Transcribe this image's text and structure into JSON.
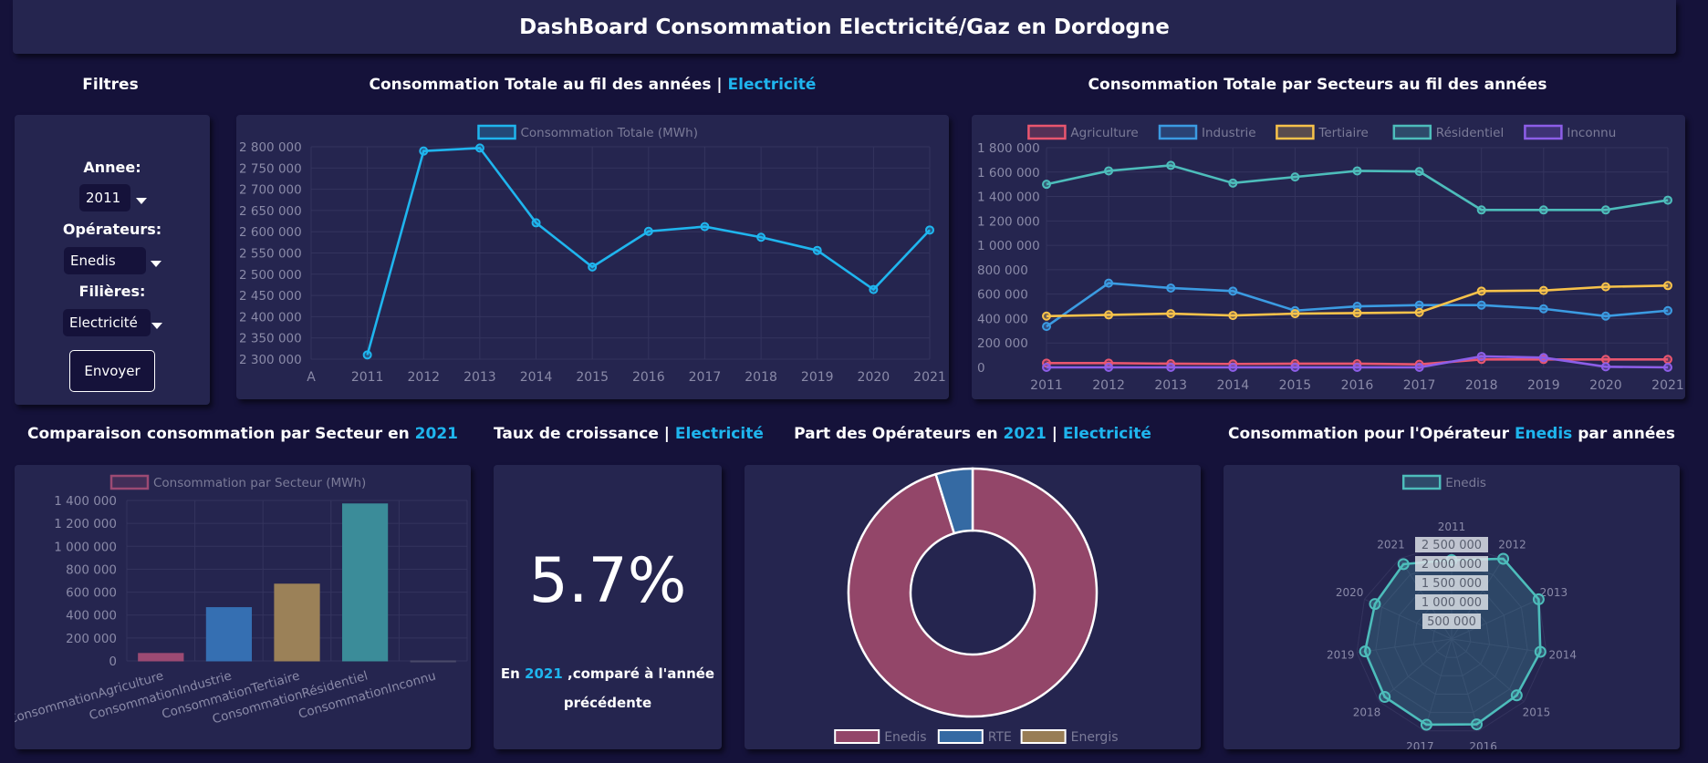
{
  "header": {
    "title": "DashBoard Consommation Electricité/Gaz en Dordogne"
  },
  "filters": {
    "title": "Filtres",
    "year_label": "Annee:",
    "year_value": "2011",
    "operator_label": "Opérateurs:",
    "operator_value": "Enedis",
    "filiere_label": "Filières:",
    "filiere_value": "Electricité",
    "submit_label": "Envoyer"
  },
  "total_chart": {
    "title_prefix": "Consommation Totale au fil des années | ",
    "title_highlight": "Electricité"
  },
  "sector_chart": {
    "title": "Consommation Totale par Secteurs au fil des années"
  },
  "bar_section": {
    "title_prefix": "Comparaison consommation par Secteur en ",
    "title_highlight": "2021"
  },
  "growth": {
    "title_prefix": "Taux de croissance | ",
    "title_highlight": "Electricité",
    "value": "5.7%",
    "caption_prefix": "En ",
    "caption_year": "2021",
    "caption_suffix": " ,comparé à l'année",
    "caption_line2": "précédente"
  },
  "share_section": {
    "title_prefix": "Part des Opérateurs en ",
    "title_year": "2021",
    "title_sep": " | ",
    "title_highlight": "Electricité"
  },
  "radar_section": {
    "title_prefix": "Consommation pour l'Opérateur ",
    "title_highlight": "Enedis",
    "title_suffix": " par années"
  },
  "chart_data": [
    {
      "type": "line",
      "legend": [
        "Consommation Totale (MWh)"
      ],
      "x": [
        "A",
        "2011",
        "2012",
        "2013",
        "2014",
        "2015",
        "2016",
        "2017",
        "2018",
        "2019",
        "2020",
        "2021"
      ],
      "series": [
        {
          "name": "Consommation Totale (MWh)",
          "color": "#1fb5ee",
          "values": [
            null,
            2310000,
            2790000,
            2797000,
            2621000,
            2517000,
            2601000,
            2612000,
            2587000,
            2556000,
            2464000,
            2604000
          ]
        }
      ],
      "yticks": [
        "2 800 000",
        "2 750 000",
        "2 700 000",
        "2 650 000",
        "2 600 000",
        "2 550 000",
        "2 500 000",
        "2 450 000",
        "2 400 000",
        "2 350 000",
        "2 300 000"
      ],
      "ylim": [
        2300000,
        2800000
      ],
      "grid": true,
      "legend_position": "top"
    },
    {
      "type": "line",
      "x": [
        "2011",
        "2012",
        "2013",
        "2014",
        "2015",
        "2016",
        "2017",
        "2018",
        "2019",
        "2020",
        "2021"
      ],
      "series": [
        {
          "name": "Agriculture",
          "color": "#e9566f",
          "values": [
            35000,
            35000,
            30000,
            28000,
            30000,
            30000,
            25000,
            65000,
            65000,
            65000,
            65000
          ]
        },
        {
          "name": "Industrie",
          "color": "#3b9be2",
          "values": [
            335000,
            690000,
            650000,
            625000,
            465000,
            500000,
            510000,
            510000,
            480000,
            420000,
            465000
          ]
        },
        {
          "name": "Tertiaire",
          "color": "#f7c24a",
          "values": [
            420000,
            430000,
            440000,
            425000,
            440000,
            445000,
            450000,
            625000,
            630000,
            660000,
            670000
          ]
        },
        {
          "name": "Résidentiel",
          "color": "#4dbdbb",
          "values": [
            1500000,
            1610000,
            1655000,
            1510000,
            1560000,
            1610000,
            1605000,
            1290000,
            1290000,
            1290000,
            1370000
          ]
        },
        {
          "name": "Inconnu",
          "color": "#8d5ee8",
          "values": [
            0,
            0,
            0,
            0,
            0,
            0,
            0,
            90000,
            80000,
            5000,
            0
          ]
        }
      ],
      "yticks": [
        "1 800 000",
        "1 600 000",
        "1 400 000",
        "1 200 000",
        "1 000 000",
        "800 000",
        "600 000",
        "400 000",
        "200 000",
        "0"
      ],
      "ylim": [
        0,
        1800000
      ],
      "grid": true,
      "legend_position": "top"
    },
    {
      "type": "bar",
      "legend": [
        "Consommation par Secteur (MWh)"
      ],
      "categories": [
        "ConsommationAgriculture",
        "ConsommationIndustrie",
        "ConsommationTertiaire",
        "ConsommationRésidentiel",
        "ConsommationInconnu"
      ],
      "values": [
        65000,
        465000,
        670000,
        1370000,
        0
      ],
      "colors": [
        "#9c4a73",
        "#356fb2",
        "#9b8158",
        "#3b8c99",
        "#4a4a6a"
      ],
      "yticks": [
        "1 400 000",
        "1 200 000",
        "1 000 000",
        "800 000",
        "600 000",
        "400 000",
        "200 000",
        "0"
      ],
      "ylim": [
        0,
        1400000
      ],
      "grid": true,
      "legend_position": "top"
    },
    {
      "type": "pie",
      "subtype": "doughnut",
      "labels": [
        "Enedis",
        "RTE",
        "Energis"
      ],
      "values": [
        95.2,
        4.8,
        0
      ],
      "colors": [
        "#934669",
        "#356aa3",
        "#987d55"
      ],
      "legend_position": "bottom"
    },
    {
      "type": "radar",
      "legend": [
        "Enedis"
      ],
      "labels": [
        "2011",
        "2012",
        "2013",
        "2014",
        "2015",
        "2016",
        "2017",
        "2018",
        "2019",
        "2020",
        "2021"
      ],
      "values": [
        2310000,
        2790000,
        2797000,
        2621000,
        2517000,
        2601000,
        2612000,
        2587000,
        2556000,
        2464000,
        2604000
      ],
      "rticks": [
        "2 500 000",
        "2 000 000",
        "1 500 000",
        "1 000 000",
        "500 000"
      ],
      "rmax": 2800000,
      "color": "#4dbdbb",
      "legend_position": "top"
    }
  ]
}
